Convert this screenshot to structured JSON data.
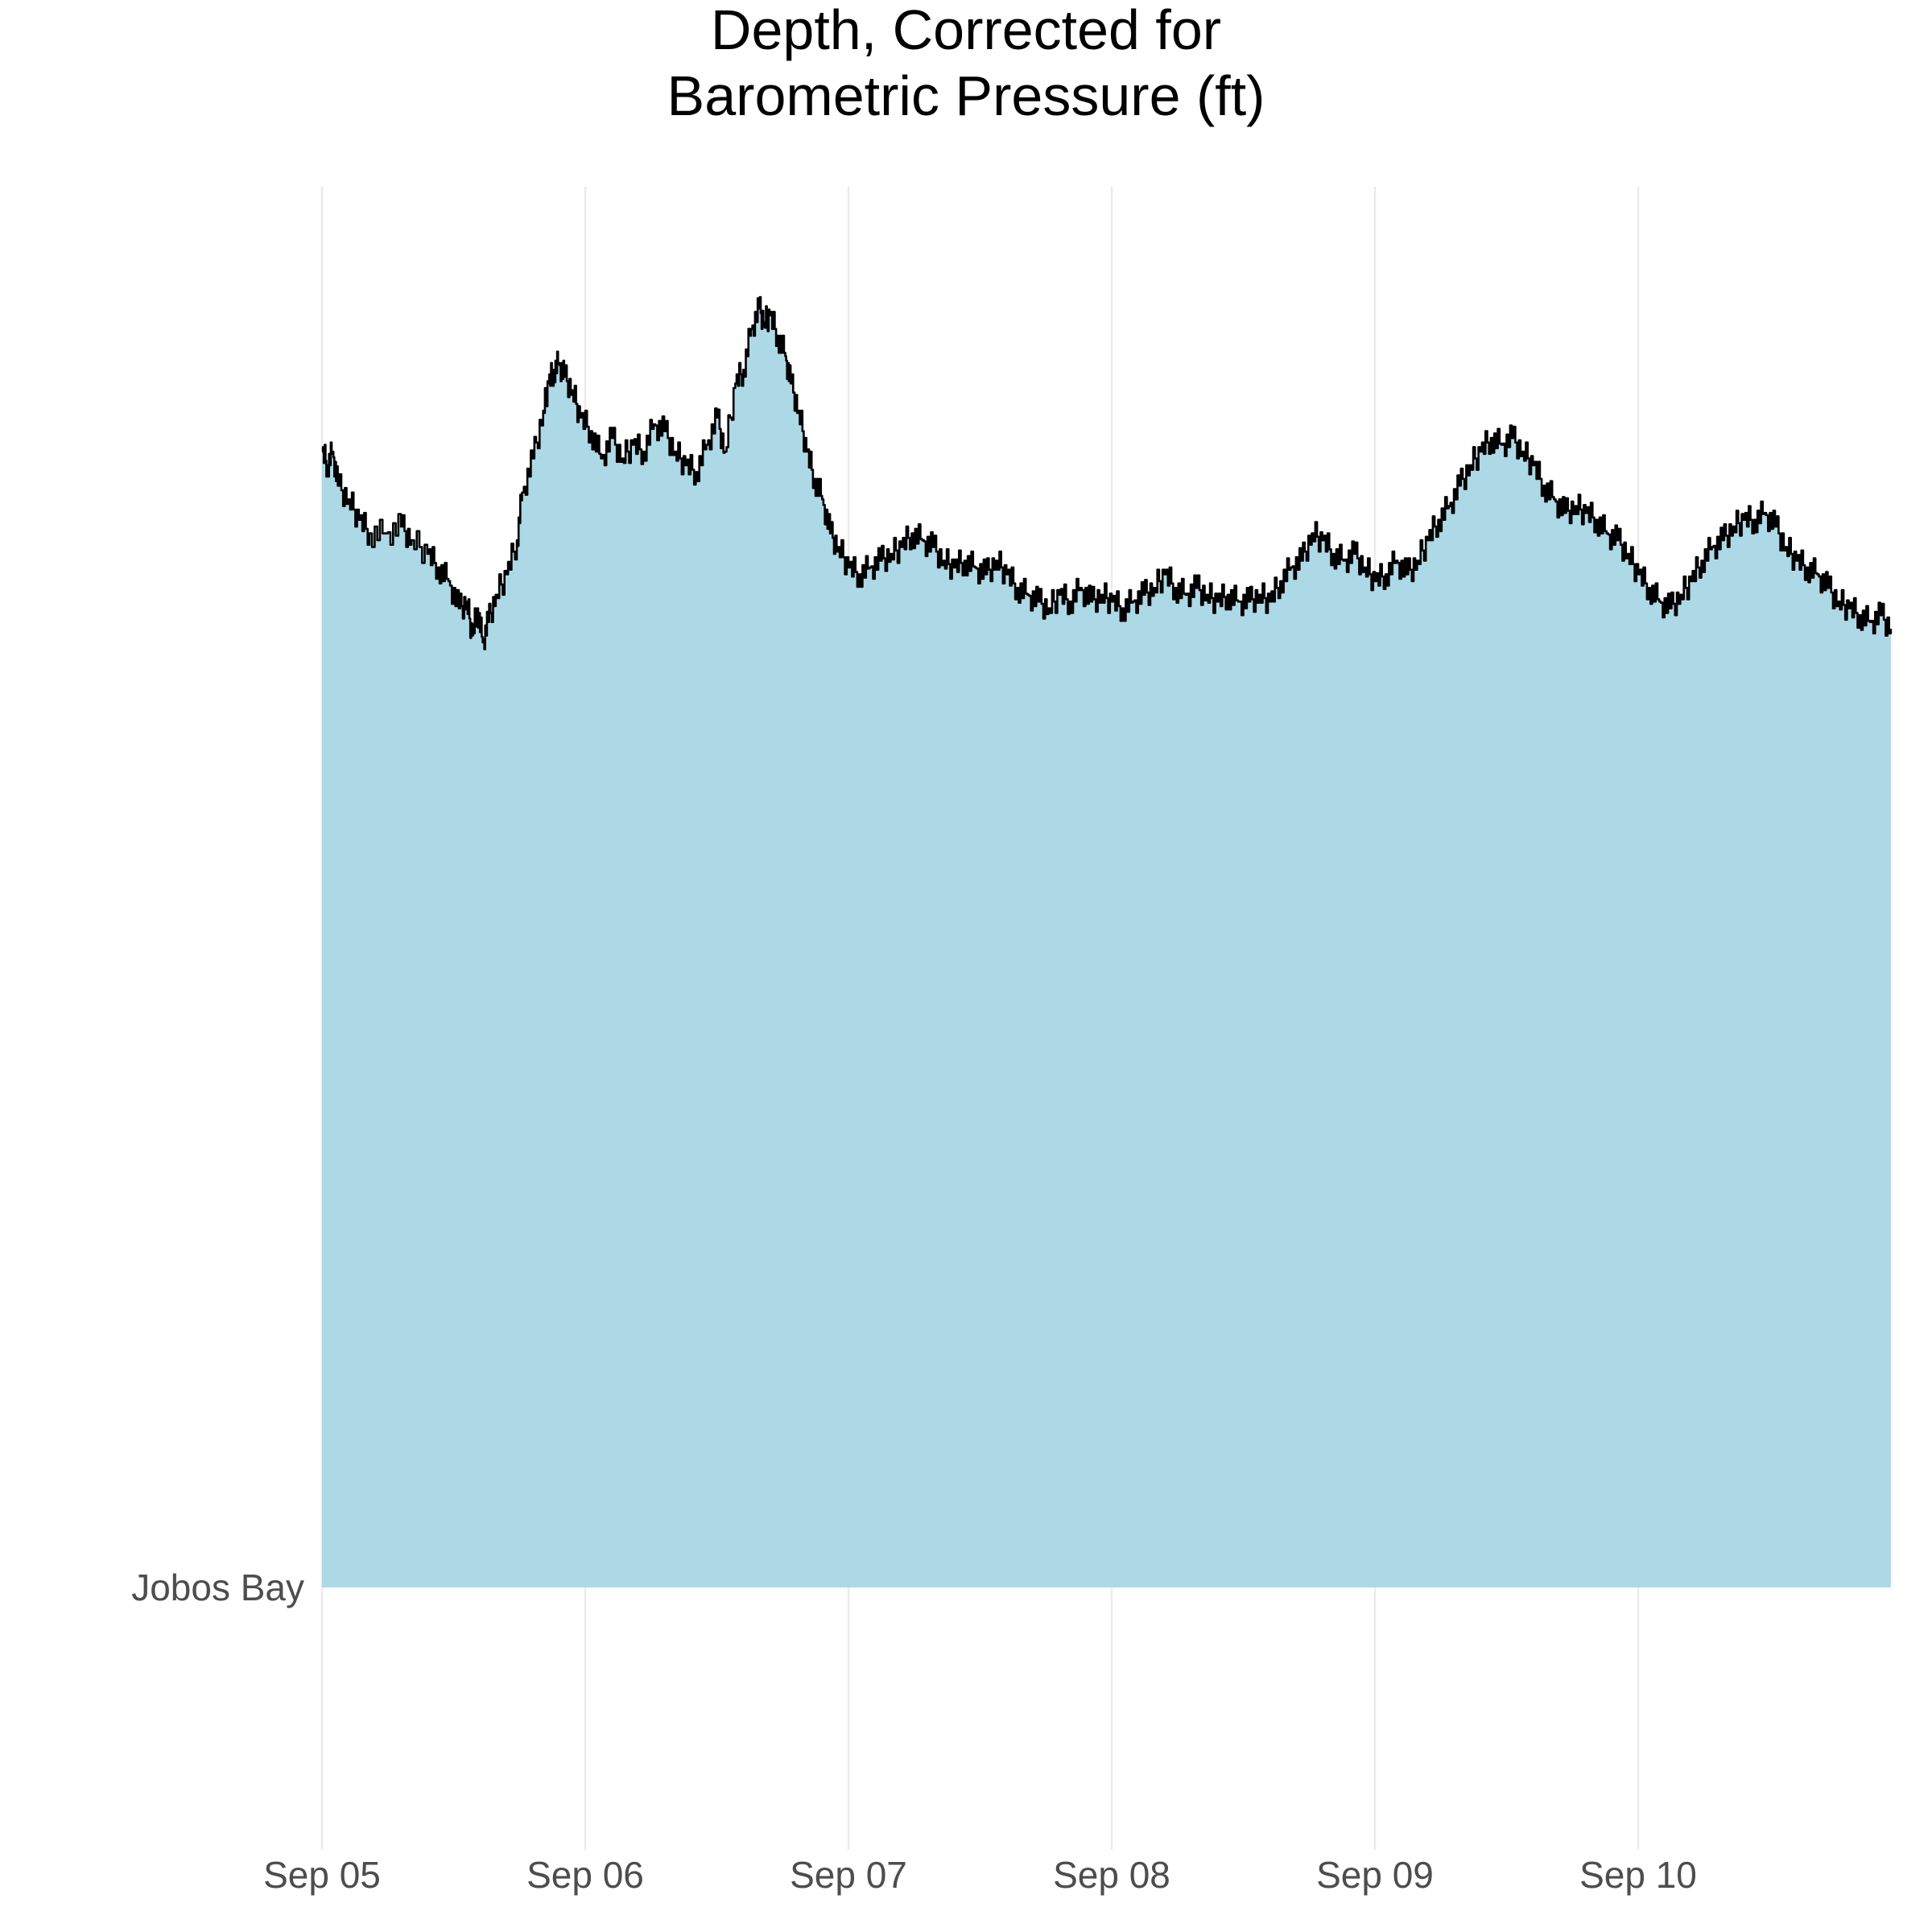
{
  "chart_data": {
    "type": "area",
    "title_lines": [
      "Depth, Corrected for",
      "Barometric Pressure (ft)"
    ],
    "xlabel": "",
    "ylabel": "",
    "y_category_label": "Jobos Bay",
    "x_tick_labels": [
      "Sep 05",
      "Sep 06",
      "Sep 07",
      "Sep 08",
      "Sep 09",
      "Sep 10"
    ],
    "x_unit": "days since Sep 05",
    "xlim": [
      0,
      5.96
    ],
    "grid": {
      "vertical_major": true,
      "horizontal": false
    },
    "fill_color": "#add8e6",
    "line_color": "#000000",
    "series": [
      {
        "points": [
          [
            0.0,
            1.0
          ],
          [
            0.02,
            0.988
          ],
          [
            0.04,
            1.0
          ],
          [
            0.06,
            0.97
          ],
          [
            0.1,
            0.958
          ],
          [
            0.14,
            0.94
          ],
          [
            0.18,
            0.928
          ],
          [
            0.24,
            0.928
          ],
          [
            0.3,
            0.934
          ],
          [
            0.34,
            0.922
          ],
          [
            0.4,
            0.91
          ],
          [
            0.44,
            0.898
          ],
          [
            0.48,
            0.886
          ],
          [
            0.52,
            0.862
          ],
          [
            0.55,
            0.868
          ],
          [
            0.57,
            0.838
          ],
          [
            0.59,
            0.862
          ],
          [
            0.61,
            0.832
          ],
          [
            0.63,
            0.85
          ],
          [
            0.66,
            0.874
          ],
          [
            0.7,
            0.892
          ],
          [
            0.74,
            0.922
          ],
          [
            0.76,
            0.964
          ],
          [
            0.8,
            0.994
          ],
          [
            0.84,
            1.036
          ],
          [
            0.86,
            1.06
          ],
          [
            0.88,
            1.072
          ],
          [
            0.9,
            1.078
          ],
          [
            0.92,
            1.066
          ],
          [
            0.95,
            1.054
          ],
          [
            0.98,
            1.03
          ],
          [
            1.02,
            1.018
          ],
          [
            1.06,
            0.994
          ],
          [
            1.1,
            1.012
          ],
          [
            1.14,
            0.994
          ],
          [
            1.18,
            1.006
          ],
          [
            1.22,
            1.0
          ],
          [
            1.26,
            1.024
          ],
          [
            1.3,
            1.018
          ],
          [
            1.34,
            1.0
          ],
          [
            1.38,
            0.988
          ],
          [
            1.42,
            0.982
          ],
          [
            1.46,
            1.006
          ],
          [
            1.5,
            1.03
          ],
          [
            1.53,
            1.0
          ],
          [
            1.57,
            1.06
          ],
          [
            1.6,
            1.072
          ],
          [
            1.63,
            1.108
          ],
          [
            1.66,
            1.126
          ],
          [
            1.68,
            1.114
          ],
          [
            1.7,
            1.12
          ],
          [
            1.73,
            1.102
          ],
          [
            1.76,
            1.084
          ],
          [
            1.78,
            1.06
          ],
          [
            1.81,
            1.036
          ],
          [
            1.84,
            1.0
          ],
          [
            1.87,
            0.976
          ],
          [
            1.9,
            0.958
          ],
          [
            1.93,
            0.928
          ],
          [
            1.96,
            0.916
          ],
          [
            2.0,
            0.898
          ],
          [
            2.04,
            0.892
          ],
          [
            2.08,
            0.898
          ],
          [
            2.12,
            0.904
          ],
          [
            2.16,
            0.91
          ],
          [
            2.2,
            0.916
          ],
          [
            2.24,
            0.928
          ],
          [
            2.28,
            0.922
          ],
          [
            2.32,
            0.916
          ],
          [
            2.36,
            0.904
          ],
          [
            2.4,
            0.898
          ],
          [
            2.44,
            0.904
          ],
          [
            2.48,
            0.898
          ],
          [
            2.52,
            0.892
          ],
          [
            2.56,
            0.904
          ],
          [
            2.6,
            0.892
          ],
          [
            2.64,
            0.88
          ],
          [
            2.68,
            0.874
          ],
          [
            2.72,
            0.868
          ],
          [
            2.76,
            0.862
          ],
          [
            2.8,
            0.874
          ],
          [
            2.84,
            0.868
          ],
          [
            2.88,
            0.88
          ],
          [
            2.92,
            0.868
          ],
          [
            2.96,
            0.874
          ],
          [
            3.0,
            0.868
          ],
          [
            3.04,
            0.862
          ],
          [
            3.08,
            0.868
          ],
          [
            3.12,
            0.874
          ],
          [
            3.16,
            0.88
          ],
          [
            3.2,
            0.892
          ],
          [
            3.24,
            0.88
          ],
          [
            3.28,
            0.874
          ],
          [
            3.32,
            0.88
          ],
          [
            3.36,
            0.874
          ],
          [
            3.4,
            0.868
          ],
          [
            3.44,
            0.874
          ],
          [
            3.48,
            0.868
          ],
          [
            3.52,
            0.868
          ],
          [
            3.56,
            0.874
          ],
          [
            3.6,
            0.868
          ],
          [
            3.64,
            0.886
          ],
          [
            3.68,
            0.898
          ],
          [
            3.72,
            0.904
          ],
          [
            3.76,
            0.928
          ],
          [
            3.8,
            0.922
          ],
          [
            3.84,
            0.91
          ],
          [
            3.88,
            0.904
          ],
          [
            3.92,
            0.91
          ],
          [
            3.96,
            0.898
          ],
          [
            4.0,
            0.886
          ],
          [
            4.04,
            0.892
          ],
          [
            4.08,
            0.904
          ],
          [
            4.12,
            0.892
          ],
          [
            4.16,
            0.904
          ],
          [
            4.2,
            0.922
          ],
          [
            4.24,
            0.94
          ],
          [
            4.28,
            0.952
          ],
          [
            4.32,
            0.97
          ],
          [
            4.36,
            0.988
          ],
          [
            4.4,
            1.0
          ],
          [
            4.44,
            1.012
          ],
          [
            4.48,
            1.006
          ],
          [
            4.52,
            1.012
          ],
          [
            4.56,
            1.0
          ],
          [
            4.6,
            0.988
          ],
          [
            4.64,
            0.97
          ],
          [
            4.68,
            0.958
          ],
          [
            4.72,
            0.946
          ],
          [
            4.76,
            0.952
          ],
          [
            4.8,
            0.946
          ],
          [
            4.84,
            0.94
          ],
          [
            4.88,
            0.928
          ],
          [
            4.92,
            0.922
          ],
          [
            4.96,
            0.91
          ],
          [
            5.0,
            0.892
          ],
          [
            5.04,
            0.88
          ],
          [
            5.08,
            0.868
          ],
          [
            5.12,
            0.862
          ],
          [
            5.16,
            0.874
          ],
          [
            5.2,
            0.886
          ],
          [
            5.24,
            0.904
          ],
          [
            5.28,
            0.916
          ],
          [
            5.32,
            0.922
          ],
          [
            5.36,
            0.934
          ],
          [
            5.4,
            0.94
          ],
          [
            5.44,
            0.94
          ],
          [
            5.48,
            0.946
          ],
          [
            5.52,
            0.934
          ],
          [
            5.56,
            0.916
          ],
          [
            5.6,
            0.904
          ],
          [
            5.64,
            0.898
          ],
          [
            5.68,
            0.892
          ],
          [
            5.72,
            0.88
          ],
          [
            5.76,
            0.868
          ],
          [
            5.8,
            0.862
          ],
          [
            5.84,
            0.856
          ],
          [
            5.88,
            0.85
          ],
          [
            5.92,
            0.856
          ],
          [
            5.96,
            0.844
          ]
        ]
      }
    ]
  }
}
